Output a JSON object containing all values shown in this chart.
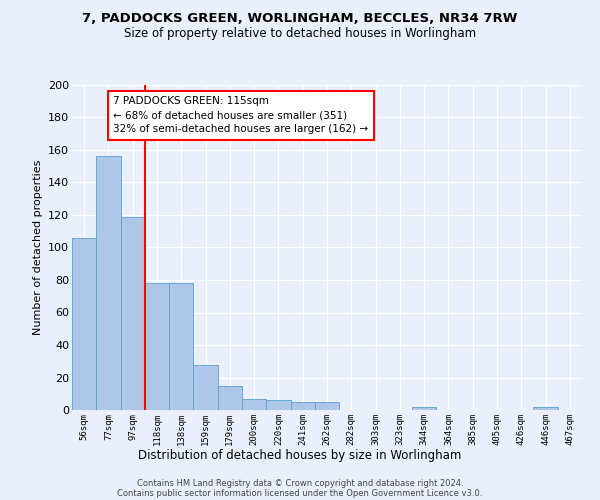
{
  "title1": "7, PADDOCKS GREEN, WORLINGHAM, BECCLES, NR34 7RW",
  "title2": "Size of property relative to detached houses in Worlingham",
  "xlabel": "Distribution of detached houses by size in Worlingham",
  "ylabel": "Number of detached properties",
  "bar_labels": [
    "56sqm",
    "77sqm",
    "97sqm",
    "118sqm",
    "138sqm",
    "159sqm",
    "179sqm",
    "200sqm",
    "220sqm",
    "241sqm",
    "262sqm",
    "282sqm",
    "303sqm",
    "323sqm",
    "344sqm",
    "364sqm",
    "385sqm",
    "405sqm",
    "426sqm",
    "446sqm",
    "467sqm"
  ],
  "bar_values": [
    106,
    156,
    119,
    78,
    78,
    28,
    15,
    7,
    6,
    5,
    5,
    0,
    0,
    0,
    2,
    0,
    0,
    0,
    0,
    2,
    0
  ],
  "bar_color": "#aec6e8",
  "bar_edge_color": "#5a9fd4",
  "vline_color": "red",
  "vline_x_index": 2.5,
  "annotation_text": "7 PADDOCKS GREEN: 115sqm\n← 68% of detached houses are smaller (351)\n32% of semi-detached houses are larger (162) →",
  "annotation_box_color": "white",
  "annotation_box_edge": "red",
  "bg_color": "#eaf0fb",
  "grid_color": "#ffffff",
  "footer1": "Contains HM Land Registry data © Crown copyright and database right 2024.",
  "footer2": "Contains public sector information licensed under the Open Government Licence v3.0.",
  "ylim": [
    0,
    200
  ],
  "yticks": [
    0,
    20,
    40,
    60,
    80,
    100,
    120,
    140,
    160,
    180,
    200
  ]
}
